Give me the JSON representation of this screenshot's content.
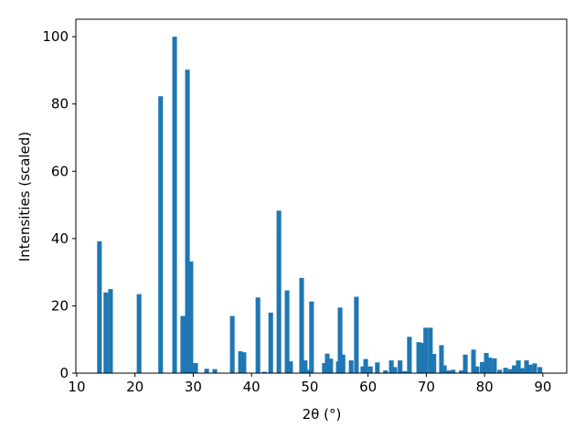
{
  "chart_data": {
    "type": "bar",
    "xlabel": "2θ (°)",
    "ylabel": "Intensities (scaled)",
    "color": "#1f77b4",
    "x": [
      13.9,
      15.0,
      15.8,
      20.7,
      24.4,
      26.8,
      28.2,
      29.0,
      29.6,
      30.4,
      32.3,
      33.7,
      36.7,
      38.1,
      38.7,
      41.1,
      42.2,
      43.3,
      44.7,
      46.1,
      46.7,
      48.6,
      49.2,
      49.7,
      50.3,
      52.5,
      53.0,
      53.6,
      54.9,
      55.2,
      55.7,
      57.1,
      58.0,
      59.1,
      59.6,
      60.4,
      61.6,
      63.0,
      64.0,
      64.6,
      65.5,
      66.3,
      67.1,
      68.7,
      69.2,
      69.9,
      70.7,
      71.3,
      72.6,
      73.1,
      73.8,
      74.6,
      76.0,
      76.7,
      78.1,
      78.7,
      79.6,
      80.3,
      80.9,
      81.7,
      82.6,
      83.6,
      84.4,
      85.1,
      85.8,
      86.4,
      87.2,
      87.8,
      88.6,
      89.5
    ],
    "values": [
      39.2,
      24,
      25,
      23.5,
      82.3,
      100,
      17,
      90.2,
      33.2,
      3,
      1.3,
      1.2,
      17,
      6.5,
      6.2,
      22.5,
      0.4,
      18,
      48.3,
      24.6,
      3.5,
      28.3,
      3.8,
      1,
      21.3,
      3,
      5.8,
      4.3,
      3.5,
      19.5,
      5.5,
      3.8,
      22.7,
      2,
      4.2,
      2,
      3.2,
      0.8,
      3.8,
      1.8,
      3.8,
      0.6,
      10.8,
      9.2,
      9,
      13.5,
      13.5,
      5.7,
      8.3,
      2.3,
      0.8,
      1,
      0.8,
      5.5,
      7,
      2,
      3.3,
      6,
      4.6,
      4.4,
      1,
      1.6,
      1.2,
      2.3,
      3.8,
      1.5,
      3.8,
      2.5,
      2.9,
      1.8
    ],
    "xlim": [
      9.85,
      94.1
    ],
    "ylim": [
      0,
      105.2
    ],
    "xticks": [
      10,
      20,
      30,
      40,
      50,
      60,
      70,
      80,
      90
    ],
    "yticks": [
      0,
      20,
      40,
      60,
      80,
      100
    ]
  }
}
